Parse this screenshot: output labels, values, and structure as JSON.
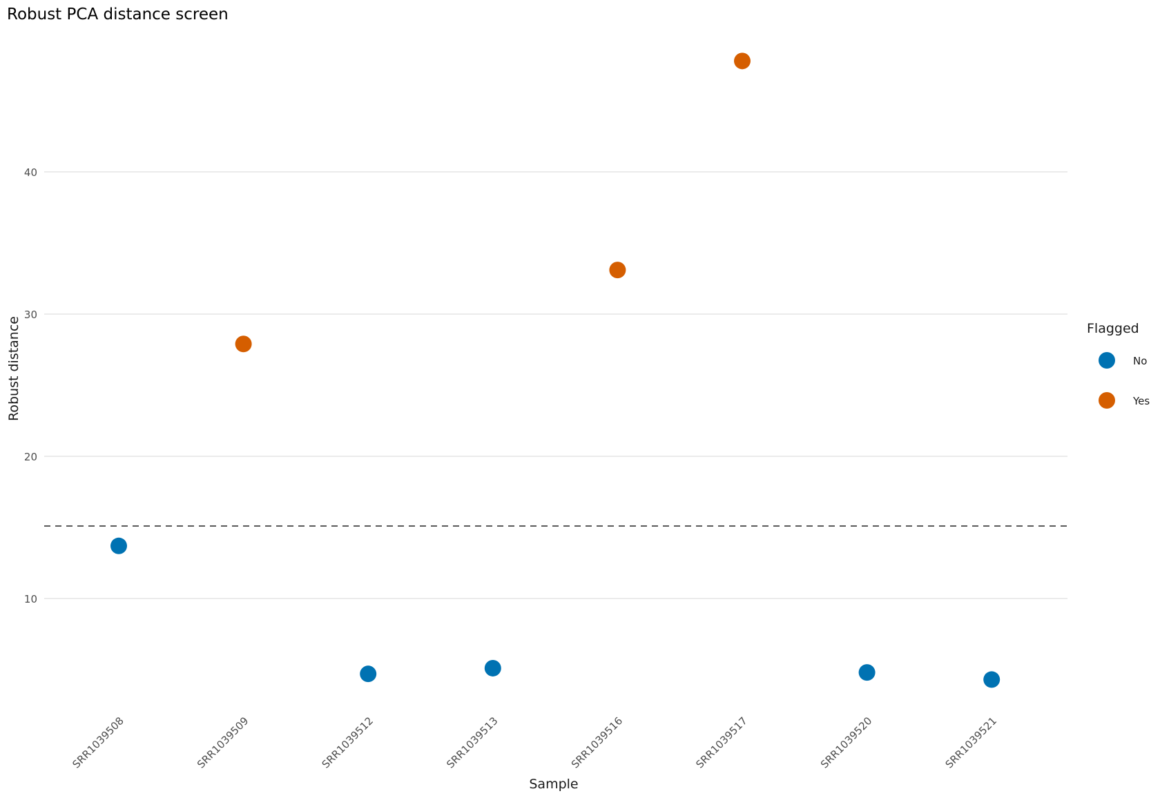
{
  "chart_data": {
    "type": "scatter",
    "title": "Robust PCA distance screen",
    "xlabel": "Sample",
    "ylabel": "Robust distance",
    "ylim": [
      3.5,
      49.5
    ],
    "yticks": [
      10,
      20,
      30,
      40
    ],
    "grid": "horizontal",
    "categories": [
      "SRR1039508",
      "SRR1039509",
      "SRR1039512",
      "SRR1039513",
      "SRR1039516",
      "SRR1039517",
      "SRR1039520",
      "SRR1039521"
    ],
    "values": [
      13.7,
      27.9,
      4.7,
      5.1,
      33.1,
      47.8,
      4.8,
      4.3
    ],
    "flagged": [
      "No",
      "Yes",
      "No",
      "No",
      "Yes",
      "Yes",
      "No",
      "No"
    ],
    "threshold": 15.1,
    "legend": {
      "title": "Flagged",
      "position": "right",
      "entries": [
        {
          "label": "No",
          "color": "#0072B2"
        },
        {
          "label": "Yes",
          "color": "#D55E00"
        }
      ]
    },
    "colors": {
      "No": "#0072B2",
      "Yes": "#D55E00",
      "grid": "#ebebeb",
      "threshold_line": "#595959",
      "tick_text": "#4d4d4d",
      "text": "#1a1a1a"
    }
  }
}
